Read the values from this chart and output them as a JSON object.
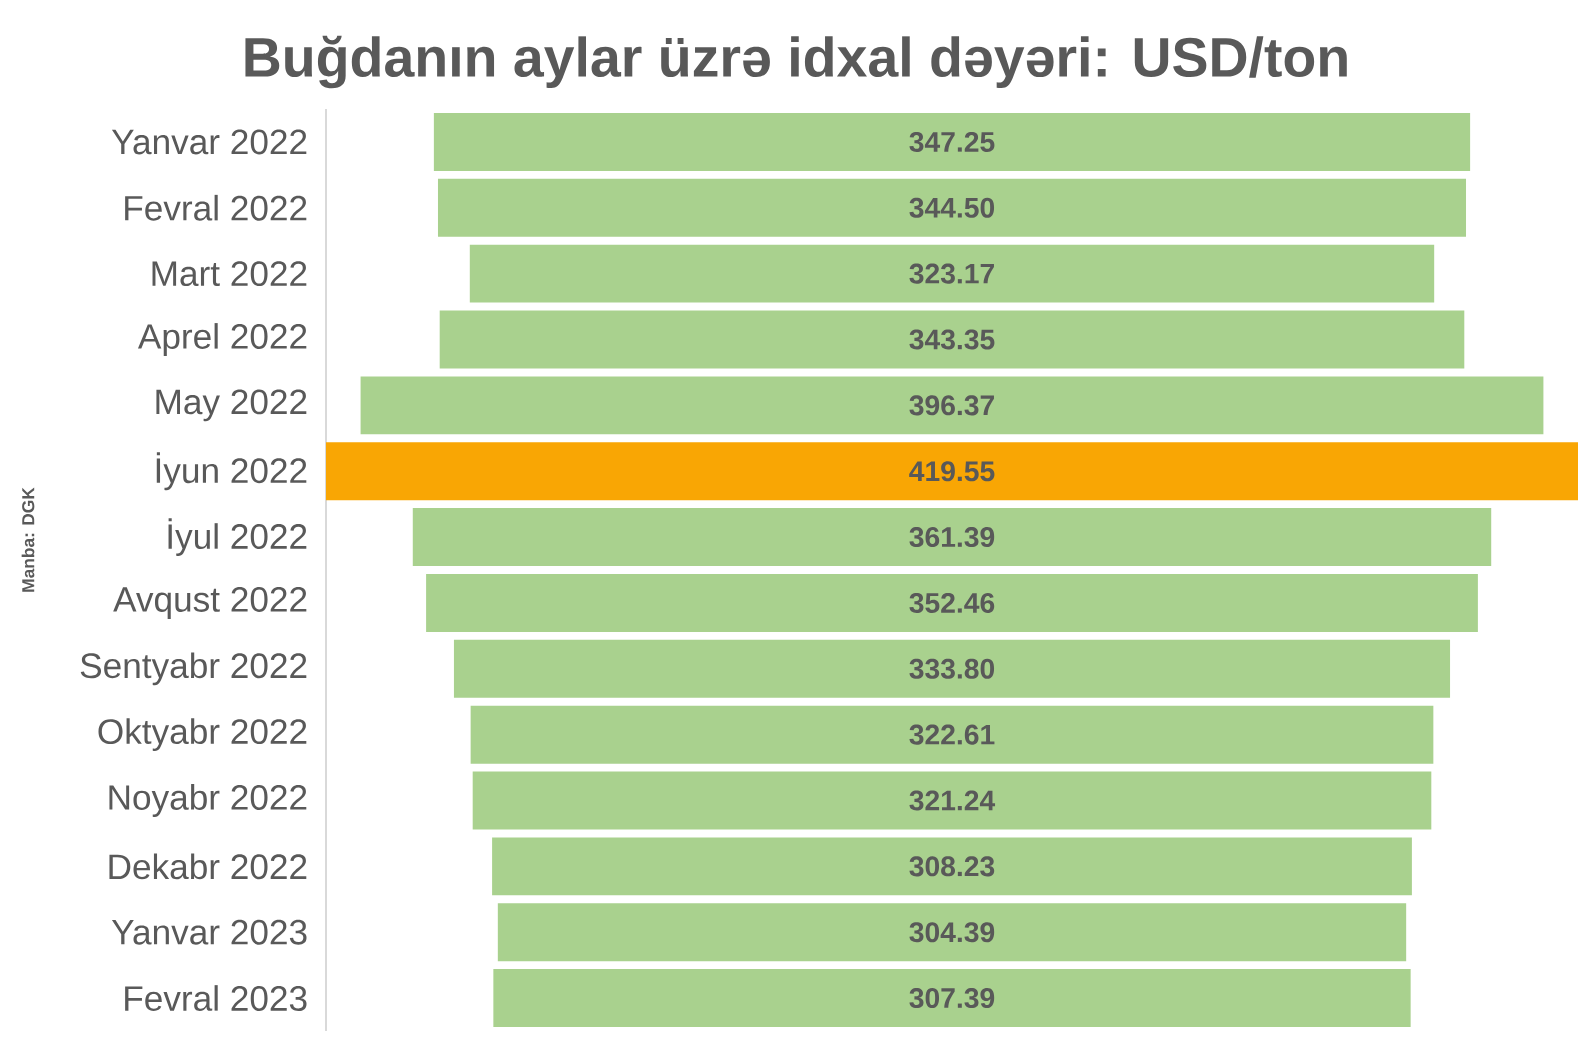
{
  "chart_data": {
    "type": "other",
    "title": "Buğdanın aylar üzrə idxal dəyəri: USD/ton",
    "categories": [
      "Yanvar 2022",
      "Fevral  2022",
      "Mart  2022",
      "Aprel  2022",
      "May 2022",
      "İyun  2022",
      "İyul  2022",
      "Avqust  2022",
      "Sentyabr  2022",
      "Oktyabr  2022",
      "Noyabr 2022",
      "Dekabr  2022",
      "Yanvar 2023",
      "Fevral 2023"
    ],
    "values": [
      347.25,
      344.5,
      323.17,
      343.35,
      396.37,
      419.55,
      361.39,
      352.46,
      333.8,
      322.61,
      321.24,
      308.23,
      304.39,
      307.39
    ],
    "value_labels": [
      "347.25",
      "344.50",
      "323.17",
      "343.35",
      "396.37",
      "419.55",
      "361.39",
      "352.46",
      "333.80",
      "322.61",
      "321.24",
      "308.23",
      "304.39",
      "307.39"
    ],
    "colors": [
      "#a9d18e",
      "#a9d18e",
      "#a9d18e",
      "#a9d18e",
      "#a9d18e",
      "#f9a604",
      "#a9d18e",
      "#a9d18e",
      "#a9d18e",
      "#a9d18e",
      "#a9d18e",
      "#a9d18e",
      "#a9d18e",
      "#a9d18e"
    ],
    "annotations": [
      "Manba: DGK"
    ]
  }
}
